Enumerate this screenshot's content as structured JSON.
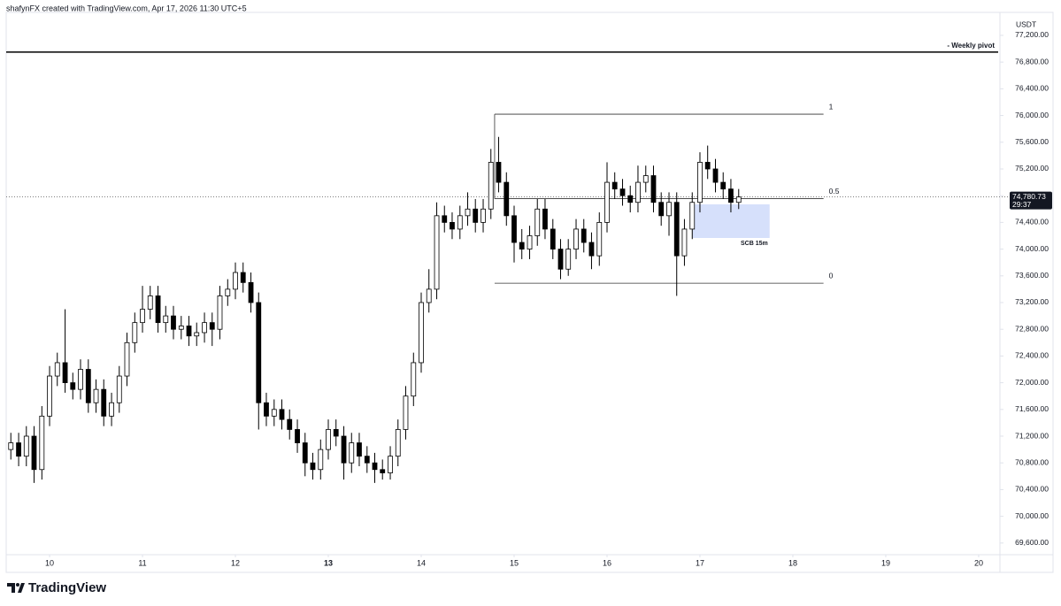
{
  "header": "shafynFX created with TradingView.com, Apr 17, 2026 11:30 UTC+5",
  "footer": {
    "brand": "TradingView"
  },
  "chart_data": {
    "type": "candlestick",
    "currency": "USDT",
    "x": [
      9.583,
      9.667,
      9.75,
      9.833,
      9.917,
      10,
      10.083,
      10.167,
      10.25,
      10.333,
      10.417,
      10.5,
      10.583,
      10.667,
      10.75,
      10.833,
      10.917,
      11,
      11.083,
      11.167,
      11.25,
      11.333,
      11.417,
      11.5,
      11.583,
      11.667,
      11.75,
      11.833,
      11.917,
      12,
      12.083,
      12.167,
      12.25,
      12.333,
      12.417,
      12.5,
      12.583,
      12.667,
      12.75,
      12.833,
      12.917,
      13,
      13.083,
      13.167,
      13.25,
      13.333,
      13.417,
      13.5,
      13.583,
      13.667,
      13.75,
      13.833,
      13.917,
      14,
      14.083,
      14.167,
      14.25,
      14.333,
      14.417,
      14.5,
      14.583,
      14.667,
      14.75,
      14.833,
      14.917,
      15,
      15.083,
      15.167,
      15.25,
      15.333,
      15.417,
      15.5,
      15.583,
      15.667,
      15.75,
      15.833,
      15.917,
      16,
      16.083,
      16.167,
      16.25,
      16.333,
      16.417,
      16.5,
      16.583,
      16.667,
      16.75,
      16.833,
      16.917,
      17,
      17.083,
      17.167,
      17.25,
      17.333,
      17.417
    ],
    "open": [
      71000,
      71100,
      70900,
      71200,
      70700,
      71500,
      72100,
      72300,
      72000,
      71900,
      72200,
      71700,
      71900,
      71500,
      71700,
      72100,
      72600,
      72900,
      73100,
      73300,
      72900,
      73000,
      72800,
      72850,
      72700,
      72750,
      72900,
      72800,
      73300,
      73400,
      73650,
      73500,
      73200,
      71700,
      71500,
      71600,
      71450,
      71300,
      71100,
      70800,
      70700,
      71000,
      71300,
      71200,
      70800,
      71100,
      70900,
      70800,
      70700,
      70650,
      70900,
      71300,
      71800,
      72300,
      73200,
      73400,
      74500,
      74400,
      74300,
      74500,
      74600,
      74400,
      74600,
      75300,
      75000,
      74500,
      74100,
      74000,
      74200,
      74600,
      74300,
      74000,
      73700,
      74000,
      74300,
      74100,
      73900,
      74400,
      75000,
      74900,
      74800,
      74700,
      75000,
      75100,
      74700,
      74500,
      74700,
      73900,
      74300,
      74700,
      75300,
      75200,
      75000,
      74900,
      74700
    ],
    "high": [
      71250,
      71250,
      71350,
      71350,
      71650,
      72250,
      72450,
      73100,
      72150,
      72350,
      72350,
      72050,
      72050,
      71850,
      72250,
      72750,
      73050,
      73450,
      73450,
      73450,
      73150,
      73150,
      73000,
      73000,
      72900,
      73050,
      73050,
      73450,
      73550,
      73800,
      73800,
      73650,
      73350,
      71850,
      71750,
      71750,
      71600,
      71450,
      71250,
      70950,
      71150,
      71450,
      71450,
      71350,
      71250,
      71250,
      71050,
      70950,
      70850,
      71050,
      71450,
      71950,
      72450,
      73350,
      73700,
      74700,
      74650,
      74550,
      74650,
      74850,
      74750,
      74750,
      75500,
      75680,
      75150,
      74650,
      74300,
      74350,
      74750,
      74750,
      74450,
      74150,
      74150,
      74450,
      74450,
      74250,
      74550,
      75300,
      75150,
      75050,
      74950,
      75250,
      75250,
      75250,
      74850,
      74850,
      74850,
      74450,
      74850,
      75450,
      75550,
      75350,
      75150,
      75050,
      74900
    ],
    "low": [
      70850,
      70750,
      70750,
      70500,
      70550,
      71350,
      71950,
      71850,
      71750,
      71750,
      71550,
      71550,
      71350,
      71350,
      71550,
      71950,
      72450,
      72750,
      72950,
      72750,
      72750,
      72650,
      72650,
      72550,
      72550,
      72600,
      72550,
      72650,
      73150,
      73250,
      73350,
      73050,
      71300,
      71350,
      71350,
      71300,
      71150,
      70950,
      70600,
      70550,
      70550,
      70850,
      71050,
      70550,
      70650,
      70750,
      70650,
      70500,
      70550,
      70550,
      70750,
      71150,
      71650,
      72150,
      73050,
      73250,
      74250,
      74150,
      74150,
      74350,
      74250,
      74250,
      74450,
      74850,
      74350,
      73800,
      73850,
      73850,
      74050,
      74150,
      73850,
      73550,
      73600,
      73850,
      73950,
      73700,
      73750,
      74250,
      74750,
      74650,
      74550,
      74550,
      74850,
      74550,
      74350,
      74200,
      73300,
      73750,
      74150,
      74550,
      75050,
      74850,
      74750,
      74550,
      74600
    ],
    "close": [
      71100,
      70900,
      71200,
      70700,
      71500,
      72100,
      72300,
      72000,
      71900,
      72200,
      71700,
      71900,
      71500,
      71700,
      72100,
      72600,
      72900,
      73100,
      73300,
      72900,
      73000,
      72800,
      72850,
      72700,
      72750,
      72900,
      72800,
      73300,
      73400,
      73650,
      73500,
      73200,
      71700,
      71500,
      71600,
      71450,
      71300,
      71100,
      70800,
      70700,
      71000,
      71300,
      71200,
      70800,
      71100,
      70900,
      70800,
      70700,
      70650,
      70900,
      71300,
      71800,
      72300,
      73200,
      73400,
      74500,
      74400,
      74300,
      74500,
      74600,
      74400,
      74600,
      75300,
      75000,
      74500,
      74100,
      74000,
      74200,
      74600,
      74300,
      74000,
      73700,
      74000,
      74300,
      74100,
      73900,
      74400,
      75000,
      74900,
      74800,
      74700,
      75000,
      75100,
      74700,
      74500,
      74700,
      73900,
      74300,
      74700,
      75300,
      75200,
      75000,
      74900,
      74700,
      74780.73
    ],
    "up_color": "#ffffff",
    "down_color": "#000000",
    "wick_color": "#000000",
    "last_price_label": "74,780.73",
    "countdown": "29:37",
    "xlim": [
      9.533,
      20.229
    ],
    "ylim": [
      69293,
      77544
    ],
    "xticks": [
      10,
      11,
      12,
      13,
      14,
      15,
      16,
      17,
      18,
      19,
      20
    ],
    "major_xtick": 13,
    "yticks": [
      {
        "value": 69600,
        "label": "69,600.00"
      },
      {
        "value": 70000,
        "label": "70,000.00"
      },
      {
        "value": 70400,
        "label": "70,400.00"
      },
      {
        "value": 70800,
        "label": "70,800.00"
      },
      {
        "value": 71200,
        "label": "71,200.00"
      },
      {
        "value": 71600,
        "label": "71,600.00"
      },
      {
        "value": 72000,
        "label": "72,000.00"
      },
      {
        "value": 72400,
        "label": "72,400.00"
      },
      {
        "value": 72800,
        "label": "72,800.00"
      },
      {
        "value": 73200,
        "label": "73,200.00"
      },
      {
        "value": 73600,
        "label": "73,600.00"
      },
      {
        "value": 74000,
        "label": "74,000.00"
      },
      {
        "value": 74400,
        "label": "74,400.00"
      },
      {
        "value": 74800,
        "label": "74,800.00"
      },
      {
        "value": 75200,
        "label": "75,200.00"
      },
      {
        "value": 75600,
        "label": "75,600.00"
      },
      {
        "value": 76000,
        "label": "76,000.00"
      },
      {
        "value": 76400,
        "label": "76,400.00"
      },
      {
        "value": 76800,
        "label": "76,800.00"
      },
      {
        "value": 77200,
        "label": "77,200.00"
      }
    ],
    "grid": false,
    "pivot": {
      "label": "- Weekly pivot",
      "price": 76950
    },
    "fib": {
      "x": [
        14.79,
        18.33
      ],
      "levels": [
        {
          "label": "1",
          "price": 76020
        },
        {
          "label": "0.5",
          "price": 74755
        },
        {
          "label": "0",
          "price": 73490
        }
      ]
    },
    "zone": {
      "label": "SCB 15m",
      "x": [
        16.92,
        17.75
      ],
      "y": [
        74670,
        74167
      ],
      "color": "#d6e0fb"
    }
  }
}
